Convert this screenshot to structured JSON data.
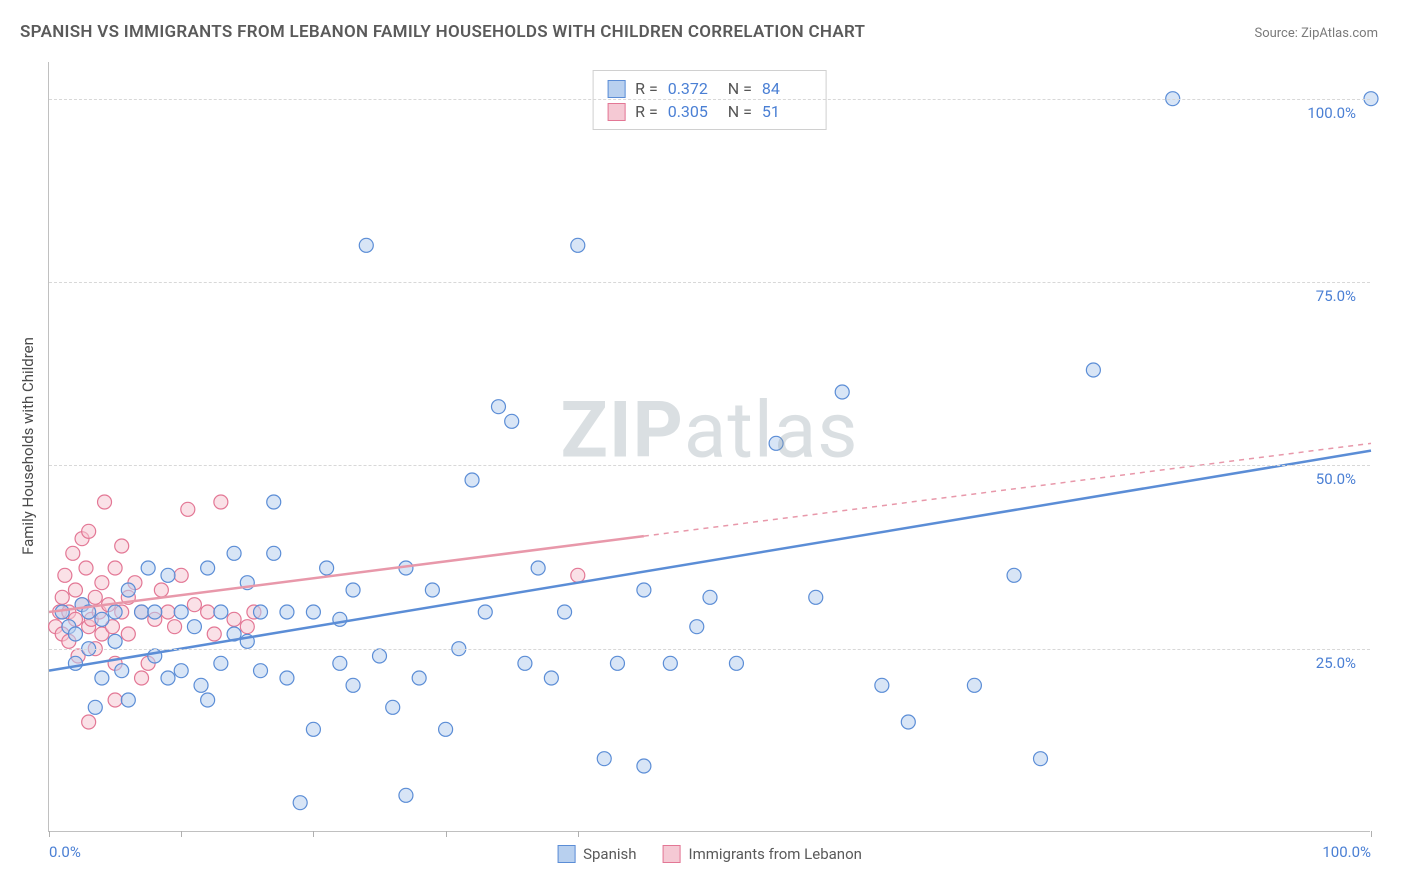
{
  "title": "SPANISH VS IMMIGRANTS FROM LEBANON FAMILY HOUSEHOLDS WITH CHILDREN CORRELATION CHART",
  "source": "Source: ZipAtlas.com",
  "ylabel": "Family Households with Children",
  "watermark_zip": "ZIP",
  "watermark_rest": "atlas",
  "chart": {
    "type": "scatter",
    "xlim": [
      0,
      100
    ],
    "ylim": [
      0,
      105
    ],
    "grid_y": [
      25,
      50,
      75,
      100
    ],
    "ytick_labels": {
      "25": "25.0%",
      "50": "50.0%",
      "75": "75.0%",
      "100": "100.0%"
    },
    "xtick_positions": [
      0,
      10,
      20,
      30,
      40,
      100
    ],
    "xtick_labels": {
      "0": "0.0%",
      "100": "100.0%"
    },
    "background_color": "#ffffff",
    "grid_color": "#d8d8d8",
    "marker_radius": 7,
    "marker_opacity": 0.55,
    "marker_stroke_width": 1.2,
    "line_width": 2.5,
    "series": [
      {
        "name": "Spanish",
        "color": "#5b8dd6",
        "fill": "#b8d0ef",
        "stroke": "#5b8dd6",
        "R": "0.372",
        "N": "84",
        "trend": {
          "x1": 0,
          "y1": 22,
          "x2": 100,
          "y2": 52,
          "solid_until": 100
        },
        "points": [
          [
            1,
            30
          ],
          [
            1.5,
            28
          ],
          [
            2,
            27
          ],
          [
            2,
            23
          ],
          [
            2.5,
            31
          ],
          [
            3,
            25
          ],
          [
            3,
            30
          ],
          [
            3.5,
            17
          ],
          [
            4,
            21
          ],
          [
            4,
            29
          ],
          [
            5,
            30
          ],
          [
            5,
            26
          ],
          [
            5.5,
            22
          ],
          [
            6,
            33
          ],
          [
            6,
            18
          ],
          [
            7,
            30
          ],
          [
            7.5,
            36
          ],
          [
            8,
            24
          ],
          [
            8,
            30
          ],
          [
            9,
            21
          ],
          [
            9,
            35
          ],
          [
            10,
            30
          ],
          [
            10,
            22
          ],
          [
            11,
            28
          ],
          [
            11.5,
            20
          ],
          [
            12,
            36
          ],
          [
            12,
            18
          ],
          [
            13,
            30
          ],
          [
            13,
            23
          ],
          [
            14,
            38
          ],
          [
            14,
            27
          ],
          [
            15,
            26
          ],
          [
            15,
            34
          ],
          [
            16,
            22
          ],
          [
            16,
            30
          ],
          [
            17,
            45
          ],
          [
            17,
            38
          ],
          [
            18,
            21
          ],
          [
            18,
            30
          ],
          [
            19,
            4
          ],
          [
            20,
            30
          ],
          [
            20,
            14
          ],
          [
            21,
            36
          ],
          [
            22,
            23
          ],
          [
            22,
            29
          ],
          [
            23,
            20
          ],
          [
            23,
            33
          ],
          [
            24,
            80
          ],
          [
            25,
            24
          ],
          [
            26,
            17
          ],
          [
            27,
            36
          ],
          [
            27,
            5
          ],
          [
            28,
            21
          ],
          [
            29,
            33
          ],
          [
            30,
            14
          ],
          [
            31,
            25
          ],
          [
            32,
            48
          ],
          [
            33,
            30
          ],
          [
            34,
            58
          ],
          [
            35,
            56
          ],
          [
            36,
            23
          ],
          [
            37,
            36
          ],
          [
            38,
            21
          ],
          [
            39,
            30
          ],
          [
            40,
            80
          ],
          [
            42,
            10
          ],
          [
            43,
            23
          ],
          [
            45,
            33
          ],
          [
            45,
            9
          ],
          [
            47,
            23
          ],
          [
            49,
            28
          ],
          [
            50,
            32
          ],
          [
            52,
            23
          ],
          [
            55,
            53
          ],
          [
            58,
            32
          ],
          [
            60,
            60
          ],
          [
            63,
            20
          ],
          [
            65,
            15
          ],
          [
            70,
            20
          ],
          [
            73,
            35
          ],
          [
            79,
            63
          ],
          [
            85,
            100
          ],
          [
            75,
            10
          ],
          [
            100,
            100
          ]
        ]
      },
      {
        "name": "Immigrants from Lebanon",
        "color": "#e898aa",
        "fill": "#f5c9d4",
        "stroke": "#e37795",
        "R": "0.305",
        "N": "51",
        "trend": {
          "x1": 0,
          "y1": 30,
          "x2": 100,
          "y2": 53,
          "solid_until": 45
        },
        "points": [
          [
            0.5,
            28
          ],
          [
            0.8,
            30
          ],
          [
            1,
            32
          ],
          [
            1,
            27
          ],
          [
            1.2,
            35
          ],
          [
            1.5,
            26
          ],
          [
            1.5,
            30
          ],
          [
            1.8,
            38
          ],
          [
            2,
            29
          ],
          [
            2,
            33
          ],
          [
            2.2,
            24
          ],
          [
            2.5,
            31
          ],
          [
            2.5,
            40
          ],
          [
            2.8,
            36
          ],
          [
            3,
            28
          ],
          [
            3,
            41
          ],
          [
            3.2,
            29
          ],
          [
            3.5,
            32
          ],
          [
            3.5,
            25
          ],
          [
            3.8,
            30
          ],
          [
            4,
            27
          ],
          [
            4,
            34
          ],
          [
            4.2,
            45
          ],
          [
            4.5,
            31
          ],
          [
            4.8,
            28
          ],
          [
            5,
            36
          ],
          [
            5,
            23
          ],
          [
            5.5,
            30
          ],
          [
            5.5,
            39
          ],
          [
            6,
            32
          ],
          [
            6,
            27
          ],
          [
            6.5,
            34
          ],
          [
            7,
            30
          ],
          [
            7,
            21
          ],
          [
            7.5,
            23
          ],
          [
            8,
            29
          ],
          [
            8.5,
            33
          ],
          [
            9,
            30
          ],
          [
            9.5,
            28
          ],
          [
            10,
            35
          ],
          [
            10.5,
            44
          ],
          [
            11,
            31
          ],
          [
            12,
            30
          ],
          [
            12.5,
            27
          ],
          [
            13,
            45
          ],
          [
            14,
            29
          ],
          [
            15,
            28
          ],
          [
            15.5,
            30
          ],
          [
            3,
            15
          ],
          [
            5,
            18
          ],
          [
            40,
            35
          ]
        ]
      }
    ],
    "legend_labels": [
      "Spanish",
      "Immigrants from Lebanon"
    ]
  }
}
